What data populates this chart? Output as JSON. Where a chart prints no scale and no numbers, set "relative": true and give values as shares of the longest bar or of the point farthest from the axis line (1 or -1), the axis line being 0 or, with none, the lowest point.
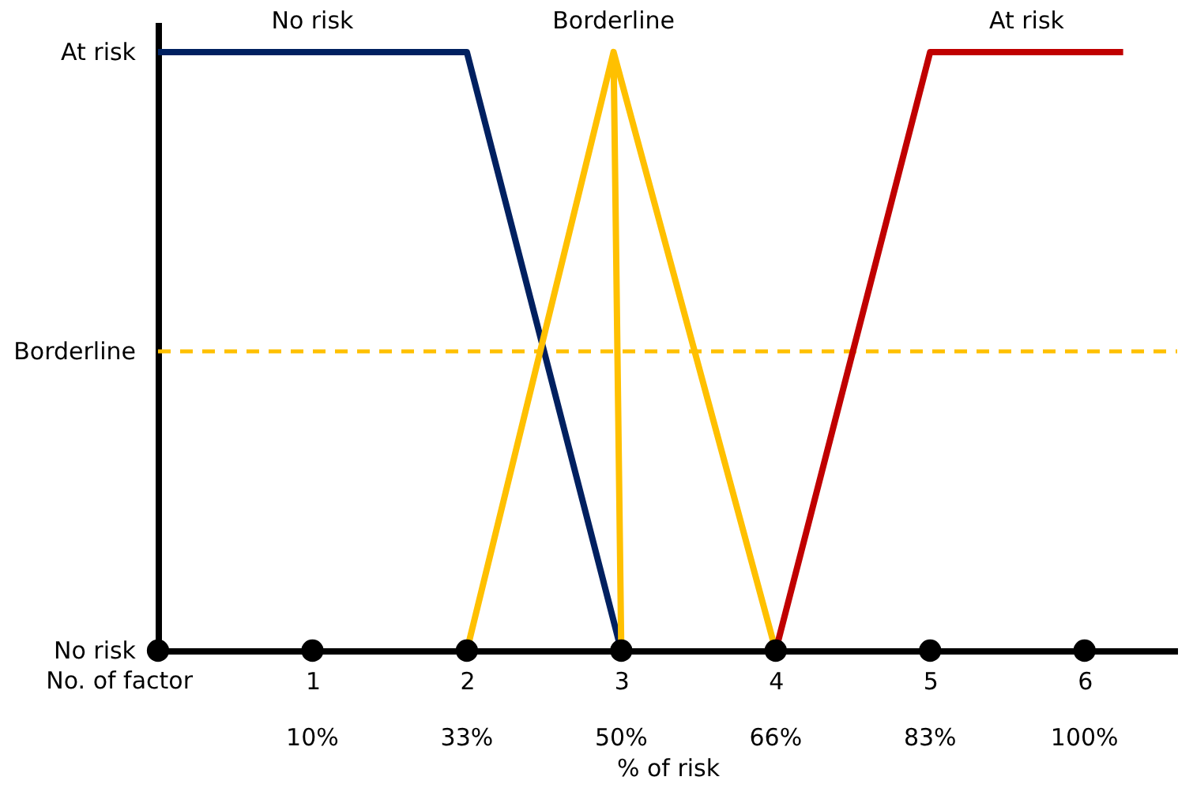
{
  "chart_data": {
    "type": "line",
    "xlabel": "% of risk",
    "relative": true,
    "xlim": [
      0,
      6.6
    ],
    "xticks": [
      1,
      2,
      3,
      4,
      5,
      6
    ],
    "series": [
      {
        "name": "No risk",
        "color": "#002060",
        "x": [
          0,
          2,
          3
        ],
        "values": [
          1,
          1,
          0
        ]
      },
      {
        "name": "Borderline",
        "color": "#ffc000",
        "x": [
          2,
          2.95,
          3,
          2.95,
          4
        ],
        "values": [
          0,
          1,
          0,
          1,
          0
        ]
      },
      {
        "name": "At risk",
        "color": "#c00000",
        "x": [
          4,
          5,
          6.25
        ],
        "values": [
          0,
          1,
          1
        ]
      },
      {
        "type": "scatter",
        "color": "#000000",
        "marker": "circle",
        "x": [
          0,
          1,
          2,
          3,
          4,
          5,
          6
        ],
        "values": [
          0,
          0,
          0,
          0,
          0,
          0,
          0
        ]
      }
    ],
    "ref_lines": [
      {
        "axis": "y",
        "value": 0.5,
        "label": "Borderline",
        "color": "#ffc000",
        "line_style": "dashed"
      }
    ],
    "annotations": [
      "At risk",
      "No risk",
      "No. of factor",
      "10%",
      "33%",
      "50%",
      "66%",
      "83%",
      "100%"
    ],
    "grid": false
  }
}
